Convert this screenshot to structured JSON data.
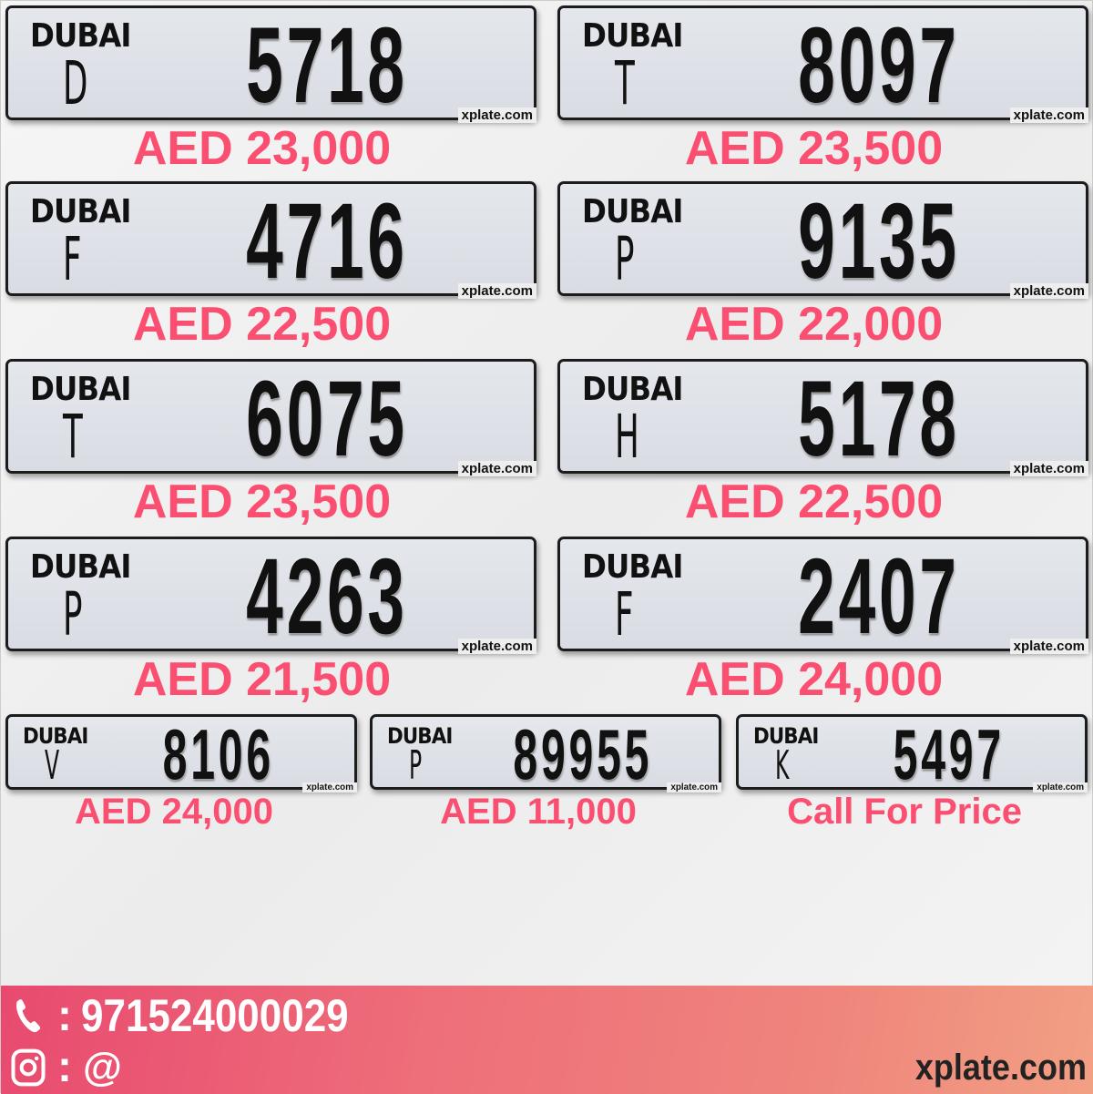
{
  "plates": [
    {
      "emirate": "DUBAI",
      "code": "D",
      "number": "5718",
      "price": "AED 23,000",
      "watermark": "xplate.com"
    },
    {
      "emirate": "DUBAI",
      "code": "T",
      "number": "8097",
      "price": "AED 23,500",
      "watermark": "xplate.com"
    },
    {
      "emirate": "DUBAI",
      "code": "F",
      "number": "4716",
      "price": "AED 22,500",
      "watermark": "xplate.com"
    },
    {
      "emirate": "DUBAI",
      "code": "P",
      "number": "9135",
      "price": "AED 22,000",
      "watermark": "xplate.com"
    },
    {
      "emirate": "DUBAI",
      "code": "T",
      "number": "6075",
      "price": "AED 23,500",
      "watermark": "xplate.com"
    },
    {
      "emirate": "DUBAI",
      "code": "H",
      "number": "5178",
      "price": "AED 22,500",
      "watermark": "xplate.com"
    },
    {
      "emirate": "DUBAI",
      "code": "P",
      "number": "4263",
      "price": "AED 21,500",
      "watermark": "xplate.com"
    },
    {
      "emirate": "DUBAI",
      "code": "F",
      "number": "2407",
      "price": "AED 24,000",
      "watermark": "xplate.com"
    },
    {
      "emirate": "DUBAI",
      "code": "V",
      "number": "8106",
      "price": "AED 24,000",
      "watermark": "xplate.com"
    },
    {
      "emirate": "DUBAI",
      "code": "P",
      "number": "89955",
      "price": "AED 11,000",
      "watermark": "xplate.com"
    },
    {
      "emirate": "DUBAI",
      "code": "K",
      "number": "5497",
      "price": "Call For Price",
      "watermark": "xplate.com"
    }
  ],
  "footer": {
    "phone_sep": ":",
    "phone": "971524000029",
    "instagram_sep": ":",
    "instagram": "@",
    "site": "xplate.com",
    "phone_icon": "phone-icon",
    "instagram_icon": "instagram-icon"
  },
  "colors": {
    "price": "#fb4f72",
    "footer_start": "#e84a6f",
    "footer_end": "#f2a084"
  }
}
